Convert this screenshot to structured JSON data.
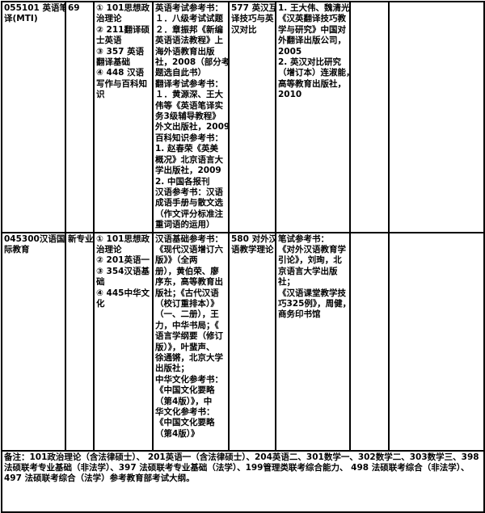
{
  "rows": [
    {
      "major": [
        "055101 英语笔",
        "译(MTI)"
      ],
      "enrollment": [
        "69"
      ],
      "exam_subjects": [
        "① 101思想政",
        "治理论",
        "② 211翻译硕",
        "士英语",
        "③ 357 英语",
        "翻译基础",
        "④ 448 汉语",
        "写作与百科知",
        "识"
      ],
      "references": [
        "英语考试参考书：",
        "１．八级考试试题",
        "２．章振邦《新编",
        "英语语法教程》上",
        "海外语教育出版",
        "社，2008（部分考",
        "题选自此书）",
        "翻译考试参考书：",
        "１．黄源深、王大",
        "伟等《英语笔译实",
        "务3级辅导教程》",
        "外文出版社，2009",
        "百科知识参考书：",
        "1. 赵春荣《英美",
        "概况》北京语言大",
        "学出版社，2009",
        "2. 中国各报刊",
        "汉语参考书：汉语",
        "成语手册与散文选",
        "（作文评分标准注",
        "重词语的运用）"
      ],
      "retest_subject": [
        "577 英汉互",
        "译技巧与英",
        "汉对比"
      ],
      "retest_references": [
        "1. 王大伟、魏清光",
        "《汉英翻译技巧教",
        "学与研究》中国对",
        "外翻译出版公司，",
        "2005",
        "2. 英汉对比研究",
        "（增订本）连淑能，",
        "高等教育出版社，",
        "2010"
      ],
      "col7": [],
      "col8": []
    },
    {
      "major": [
        "045300汉语国",
        "际教育"
      ],
      "enrollment": [
        "新专业"
      ],
      "exam_subjects": [
        "① 101思想政",
        "治理论",
        "② 201英语一",
        "③ 354汉语基",
        "础",
        "④ 445中华文",
        "化"
      ],
      "references": [
        "汉语基础参考书：",
        "《现代汉语增订六",
        "版》》（全两",
        "册），黄伯荣、廖",
        "序东，高等教育出",
        "版社；《古代汉语",
        "（校订重排本）》",
        "（一、二册），王",
        "力，中华书局；《",
        "语言学纲要（修订",
        "版）》，叶蜚声、",
        "徐通锵，北京大学",
        "出版社；",
        "中华文化参考书：",
        "《中国文化要略",
        "（第4版）》，中",
        "华文化参考书：",
        "《中国文化要略",
        "（第4版）》"
      ],
      "retest_subject": [
        "580 对外汉",
        "语教学理论"
      ],
      "retest_references": [
        "笔试参考书：",
        "《对外汉语教育学",
        "引论》，刘珣，北",
        "京语言大学出版",
        "社；",
        "《汉语课堂教学技",
        "巧325例》，周健，",
        "商务印书馆"
      ],
      "col7": [],
      "col8": []
    }
  ],
  "note": "备注：101政治理论（含法律硕士）、 201英语一（含法律硕士）、204英语二、301数学一、302数学二、303数学三、398 法硕联考专业基础（非法学）、397 法硕联考专业基础（法学）、199管理类联考综合能力、 498 法硕联考综合（非法学）、497 法硕联考综合（法学）参考教育部考试大纲。"
}
